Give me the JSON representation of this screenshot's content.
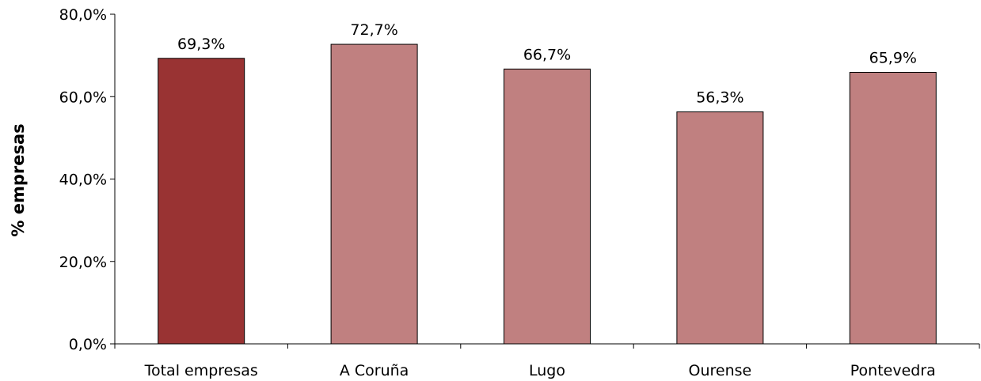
{
  "chart_data": {
    "type": "bar",
    "ylabel": "% empresas",
    "ylim": [
      0,
      80
    ],
    "yticks": [
      0,
      20,
      40,
      60,
      80
    ],
    "ytick_labels": [
      "0,0%",
      "20,0%",
      "40,0%",
      "60,0%",
      "80,0%"
    ],
    "grid": false,
    "categories": [
      "Total empresas",
      "A Coruña",
      "Lugo",
      "Ourense",
      "Pontevedra"
    ],
    "values": [
      69.3,
      72.7,
      66.7,
      56.3,
      65.9
    ],
    "value_labels": [
      "69,3%",
      "72,7%",
      "66,7%",
      "56,3%",
      "65,9%"
    ],
    "colors": [
      "#993333",
      "#c08080",
      "#c08080",
      "#c08080",
      "#c08080"
    ]
  }
}
